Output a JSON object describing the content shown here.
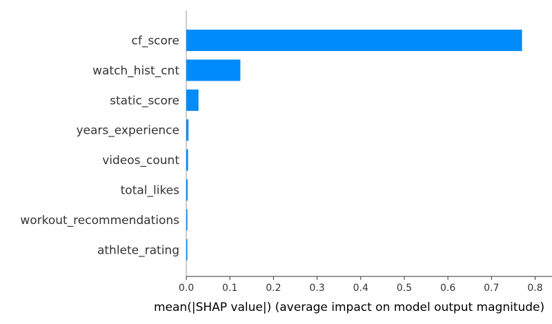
{
  "chart_data": {
    "type": "bar",
    "orientation": "horizontal",
    "categories": [
      "cf_score",
      "watch_hist_cnt",
      "static_score",
      "years_experience",
      "videos_count",
      "total_likes",
      "workout_recommendations",
      "athlete_rating"
    ],
    "values": [
      0.77,
      0.124,
      0.028,
      0.005,
      0.004,
      0.003,
      0.0025,
      0.001
    ],
    "xlabel": "mean(|SHAP value|) (average impact on model output magnitude)",
    "ylabel": "",
    "title": "",
    "xlim": [
      0,
      0.8
    ],
    "xticks": [
      "0.0",
      "0.1",
      "0.2",
      "0.3",
      "0.4",
      "0.5",
      "0.6",
      "0.7",
      "0.8"
    ],
    "grid": false,
    "bar_color": "#008bfb"
  }
}
